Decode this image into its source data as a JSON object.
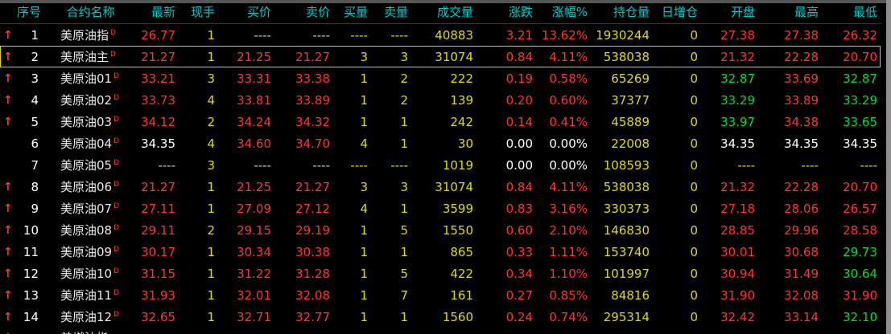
{
  "app": {
    "kind": "futures-quote-board",
    "instrument_group": "美原油 (US Crude Oil futures)"
  },
  "colors": {
    "header": "#00c8c8",
    "red": "#ff3232",
    "yellow": "#dcdc00",
    "green": "#00d832",
    "white": "#ffffff",
    "name": "#e8e8e8",
    "dash": "#c8c8d8",
    "select": "#d8d800",
    "header_underline": "#b40000",
    "topbar": "#565656",
    "scrollbar": "#8f8f8f"
  },
  "table": {
    "selected_index": 1,
    "columns": [
      {
        "key": "seq",
        "label": "序号"
      },
      {
        "key": "name",
        "label": "合约名称"
      },
      {
        "key": "last",
        "label": "最新"
      },
      {
        "key": "cur_vol",
        "label": "现手"
      },
      {
        "key": "bid",
        "label": "买价"
      },
      {
        "key": "ask",
        "label": "卖价"
      },
      {
        "key": "bid_vol",
        "label": "买量"
      },
      {
        "key": "ask_vol",
        "label": "卖量"
      },
      {
        "key": "volume",
        "label": "成交量"
      },
      {
        "key": "change",
        "label": "涨跌"
      },
      {
        "key": "change_pct",
        "label": "涨幅%"
      },
      {
        "key": "open_interest",
        "label": "持仓量"
      },
      {
        "key": "oi_daily_change",
        "label": "日增仓"
      },
      {
        "key": "open",
        "label": "开盘"
      },
      {
        "key": "high",
        "label": "最高"
      },
      {
        "key": "low",
        "label": "最低"
      }
    ],
    "cell_keys": [
      "last",
      "cur_vol",
      "bid",
      "ask",
      "bid_vol",
      "ask_vol",
      "volume",
      "change",
      "change_pct",
      "open_interest",
      "oi_daily_change",
      "open",
      "high",
      "low"
    ],
    "rows": [
      {
        "seq": "1",
        "name": "美原油指",
        "name_sup": "D",
        "arrow": true,
        "cells": [
          [
            "26.77",
            "r"
          ],
          [
            "1",
            "y"
          ],
          [
            "----",
            "d"
          ],
          [
            "----",
            "d"
          ],
          [
            "----",
            "y"
          ],
          [
            "----",
            "y"
          ],
          [
            "40883",
            "y"
          ],
          [
            "3.21",
            "r"
          ],
          [
            "13.62%",
            "r"
          ],
          [
            "1930244",
            "y"
          ],
          [
            "0",
            "y"
          ],
          [
            "27.38",
            "r"
          ],
          [
            "27.38",
            "r"
          ],
          [
            "26.32",
            "r"
          ]
        ]
      },
      {
        "seq": "2",
        "name": "美原油主",
        "name_sup": "D",
        "arrow": true,
        "cells": [
          [
            "21.27",
            "r"
          ],
          [
            "1",
            "y"
          ],
          [
            "21.25",
            "r"
          ],
          [
            "21.27",
            "r"
          ],
          [
            "3",
            "y"
          ],
          [
            "3",
            "y"
          ],
          [
            "31074",
            "y"
          ],
          [
            "0.84",
            "r"
          ],
          [
            "4.11%",
            "r"
          ],
          [
            "538038",
            "y"
          ],
          [
            "0",
            "y"
          ],
          [
            "21.32",
            "r"
          ],
          [
            "22.28",
            "r"
          ],
          [
            "20.70",
            "r"
          ]
        ]
      },
      {
        "seq": "3",
        "name": "美原油01",
        "name_sup": "D",
        "arrow": true,
        "cells": [
          [
            "33.21",
            "r"
          ],
          [
            "3",
            "y"
          ],
          [
            "33.31",
            "r"
          ],
          [
            "33.38",
            "r"
          ],
          [
            "1",
            "y"
          ],
          [
            "2",
            "y"
          ],
          [
            "222",
            "y"
          ],
          [
            "0.19",
            "r"
          ],
          [
            "0.58%",
            "r"
          ],
          [
            "65269",
            "y"
          ],
          [
            "0",
            "y"
          ],
          [
            "32.87",
            "g"
          ],
          [
            "33.69",
            "r"
          ],
          [
            "32.87",
            "g"
          ]
        ]
      },
      {
        "seq": "4",
        "name": "美原油02",
        "name_sup": "D",
        "arrow": true,
        "cells": [
          [
            "33.73",
            "r"
          ],
          [
            "4",
            "y"
          ],
          [
            "33.81",
            "r"
          ],
          [
            "33.89",
            "r"
          ],
          [
            "1",
            "y"
          ],
          [
            "2",
            "y"
          ],
          [
            "139",
            "y"
          ],
          [
            "0.20",
            "r"
          ],
          [
            "0.60%",
            "r"
          ],
          [
            "37377",
            "y"
          ],
          [
            "0",
            "y"
          ],
          [
            "33.29",
            "g"
          ],
          [
            "33.89",
            "r"
          ],
          [
            "33.29",
            "g"
          ]
        ]
      },
      {
        "seq": "5",
        "name": "美原油03",
        "name_sup": "D",
        "arrow": true,
        "cells": [
          [
            "34.12",
            "r"
          ],
          [
            "2",
            "y"
          ],
          [
            "34.24",
            "r"
          ],
          [
            "34.32",
            "r"
          ],
          [
            "1",
            "y"
          ],
          [
            "1",
            "y"
          ],
          [
            "242",
            "y"
          ],
          [
            "0.14",
            "r"
          ],
          [
            "0.41%",
            "r"
          ],
          [
            "45889",
            "y"
          ],
          [
            "0",
            "y"
          ],
          [
            "33.97",
            "g"
          ],
          [
            "34.38",
            "r"
          ],
          [
            "33.65",
            "g"
          ]
        ]
      },
      {
        "seq": "6",
        "name": "美原油04",
        "name_sup": "D",
        "arrow": false,
        "cells": [
          [
            "34.35",
            "w"
          ],
          [
            "4",
            "y"
          ],
          [
            "34.60",
            "r"
          ],
          [
            "34.70",
            "r"
          ],
          [
            "4",
            "y"
          ],
          [
            "1",
            "y"
          ],
          [
            "30",
            "y"
          ],
          [
            "0.00",
            "w"
          ],
          [
            "0.00%",
            "w"
          ],
          [
            "22008",
            "y"
          ],
          [
            "0",
            "y"
          ],
          [
            "34.35",
            "w"
          ],
          [
            "34.35",
            "w"
          ],
          [
            "34.35",
            "w"
          ]
        ]
      },
      {
        "seq": "7",
        "name": "美原油05",
        "name_sup": "D",
        "arrow": false,
        "cells": [
          [
            "----",
            "d"
          ],
          [
            "3",
            "y"
          ],
          [
            "----",
            "d"
          ],
          [
            "----",
            "d"
          ],
          [
            "----",
            "y"
          ],
          [
            "----",
            "y"
          ],
          [
            "1019",
            "y"
          ],
          [
            "0.00",
            "w"
          ],
          [
            "0.00%",
            "w"
          ],
          [
            "108593",
            "y"
          ],
          [
            "0",
            "y"
          ],
          [
            "----",
            "y"
          ],
          [
            "----",
            "y"
          ],
          [
            "----",
            "y"
          ]
        ]
      },
      {
        "seq": "8",
        "name": "美原油06",
        "name_sup": "D",
        "arrow": true,
        "cells": [
          [
            "21.27",
            "r"
          ],
          [
            "1",
            "y"
          ],
          [
            "21.25",
            "r"
          ],
          [
            "21.27",
            "r"
          ],
          [
            "3",
            "y"
          ],
          [
            "3",
            "y"
          ],
          [
            "31074",
            "y"
          ],
          [
            "0.84",
            "r"
          ],
          [
            "4.11%",
            "r"
          ],
          [
            "538038",
            "y"
          ],
          [
            "0",
            "y"
          ],
          [
            "21.32",
            "r"
          ],
          [
            "22.28",
            "r"
          ],
          [
            "20.70",
            "r"
          ]
        ]
      },
      {
        "seq": "9",
        "name": "美原油07",
        "name_sup": "D",
        "arrow": true,
        "cells": [
          [
            "27.11",
            "r"
          ],
          [
            "1",
            "y"
          ],
          [
            "27.09",
            "r"
          ],
          [
            "27.12",
            "r"
          ],
          [
            "4",
            "y"
          ],
          [
            "1",
            "y"
          ],
          [
            "3599",
            "y"
          ],
          [
            "0.83",
            "r"
          ],
          [
            "3.16%",
            "r"
          ],
          [
            "330373",
            "y"
          ],
          [
            "0",
            "y"
          ],
          [
            "27.18",
            "r"
          ],
          [
            "28.06",
            "r"
          ],
          [
            "26.57",
            "r"
          ]
        ]
      },
      {
        "seq": "10",
        "name": "美原油08",
        "name_sup": "D",
        "arrow": true,
        "cells": [
          [
            "29.11",
            "r"
          ],
          [
            "2",
            "y"
          ],
          [
            "29.15",
            "r"
          ],
          [
            "29.19",
            "r"
          ],
          [
            "1",
            "y"
          ],
          [
            "5",
            "y"
          ],
          [
            "1550",
            "y"
          ],
          [
            "0.60",
            "r"
          ],
          [
            "2.10%",
            "r"
          ],
          [
            "146830",
            "y"
          ],
          [
            "0",
            "y"
          ],
          [
            "28.85",
            "r"
          ],
          [
            "29.96",
            "r"
          ],
          [
            "28.58",
            "r"
          ]
        ]
      },
      {
        "seq": "11",
        "name": "美原油09",
        "name_sup": "D",
        "arrow": true,
        "cells": [
          [
            "30.17",
            "r"
          ],
          [
            "1",
            "y"
          ],
          [
            "30.34",
            "r"
          ],
          [
            "30.38",
            "r"
          ],
          [
            "1",
            "y"
          ],
          [
            "1",
            "y"
          ],
          [
            "865",
            "y"
          ],
          [
            "0.33",
            "r"
          ],
          [
            "1.11%",
            "r"
          ],
          [
            "153740",
            "y"
          ],
          [
            "0",
            "y"
          ],
          [
            "30.01",
            "r"
          ],
          [
            "30.68",
            "r"
          ],
          [
            "29.73",
            "g"
          ]
        ]
      },
      {
        "seq": "12",
        "name": "美原油10",
        "name_sup": "D",
        "arrow": true,
        "cells": [
          [
            "31.15",
            "r"
          ],
          [
            "1",
            "y"
          ],
          [
            "31.22",
            "r"
          ],
          [
            "31.28",
            "r"
          ],
          [
            "1",
            "y"
          ],
          [
            "5",
            "y"
          ],
          [
            "422",
            "y"
          ],
          [
            "0.34",
            "r"
          ],
          [
            "1.10%",
            "r"
          ],
          [
            "101997",
            "y"
          ],
          [
            "0",
            "y"
          ],
          [
            "30.94",
            "r"
          ],
          [
            "31.49",
            "r"
          ],
          [
            "30.64",
            "g"
          ]
        ]
      },
      {
        "seq": "13",
        "name": "美原油11",
        "name_sup": "D",
        "arrow": true,
        "cells": [
          [
            "31.93",
            "r"
          ],
          [
            "1",
            "y"
          ],
          [
            "32.01",
            "r"
          ],
          [
            "32.08",
            "r"
          ],
          [
            "1",
            "y"
          ],
          [
            "7",
            "y"
          ],
          [
            "161",
            "y"
          ],
          [
            "0.27",
            "r"
          ],
          [
            "0.85%",
            "r"
          ],
          [
            "84816",
            "y"
          ],
          [
            "0",
            "y"
          ],
          [
            "31.90",
            "r"
          ],
          [
            "32.08",
            "r"
          ],
          [
            "31.90",
            "r"
          ]
        ]
      },
      {
        "seq": "14",
        "name": "美原油12",
        "name_sup": "D",
        "arrow": true,
        "cells": [
          [
            "32.65",
            "r"
          ],
          [
            "1",
            "y"
          ],
          [
            "32.71",
            "r"
          ],
          [
            "32.77",
            "r"
          ],
          [
            "1",
            "y"
          ],
          [
            "1",
            "y"
          ],
          [
            "1560",
            "y"
          ],
          [
            "0.24",
            "r"
          ],
          [
            "0.74%",
            "r"
          ],
          [
            "295314",
            "y"
          ],
          [
            "0",
            "y"
          ],
          [
            "32.42",
            "r"
          ],
          [
            "33.14",
            "r"
          ],
          [
            "32.10",
            "g"
          ]
        ]
      }
    ],
    "partial_row": {
      "arrow": true,
      "name": "美燃油指",
      "clipped": true
    }
  }
}
